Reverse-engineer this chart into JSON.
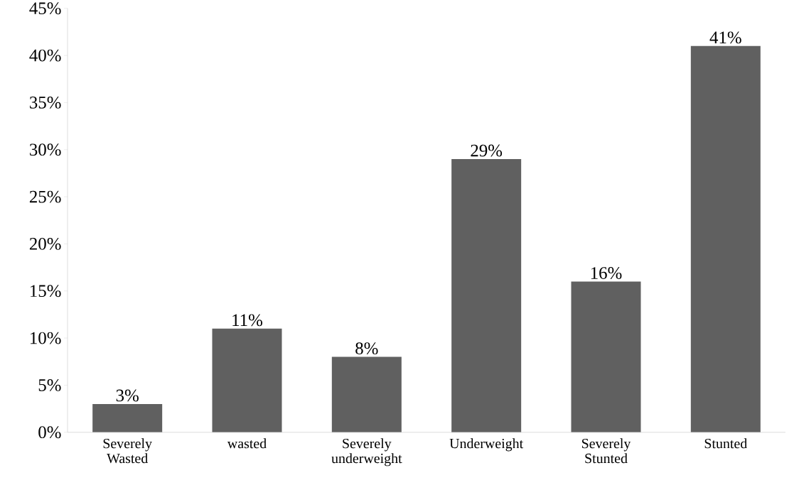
{
  "chart_data": {
    "type": "bar",
    "categories": [
      "Severely Wasted",
      "wasted",
      "Severely underweight",
      "Underweight",
      "Severely Stunted",
      "Stunted"
    ],
    "values": [
      3,
      11,
      8,
      29,
      16,
      41
    ],
    "value_labels": [
      "3%",
      "11%",
      "8%",
      "29%",
      "16%",
      "41%"
    ],
    "color": "#606060",
    "ylim": [
      0,
      45
    ],
    "yticks": [
      {
        "value": 0,
        "label": "0%"
      },
      {
        "value": 5,
        "label": "5%"
      },
      {
        "value": 10,
        "label": "10%"
      },
      {
        "value": 15,
        "label": "15%"
      },
      {
        "value": 20,
        "label": "20%"
      },
      {
        "value": 25,
        "label": "25%"
      },
      {
        "value": 30,
        "label": "30%"
      },
      {
        "value": 35,
        "label": "35%"
      },
      {
        "value": 40,
        "label": "40%"
      },
      {
        "value": 45,
        "label": "45%"
      }
    ],
    "grid": false
  }
}
